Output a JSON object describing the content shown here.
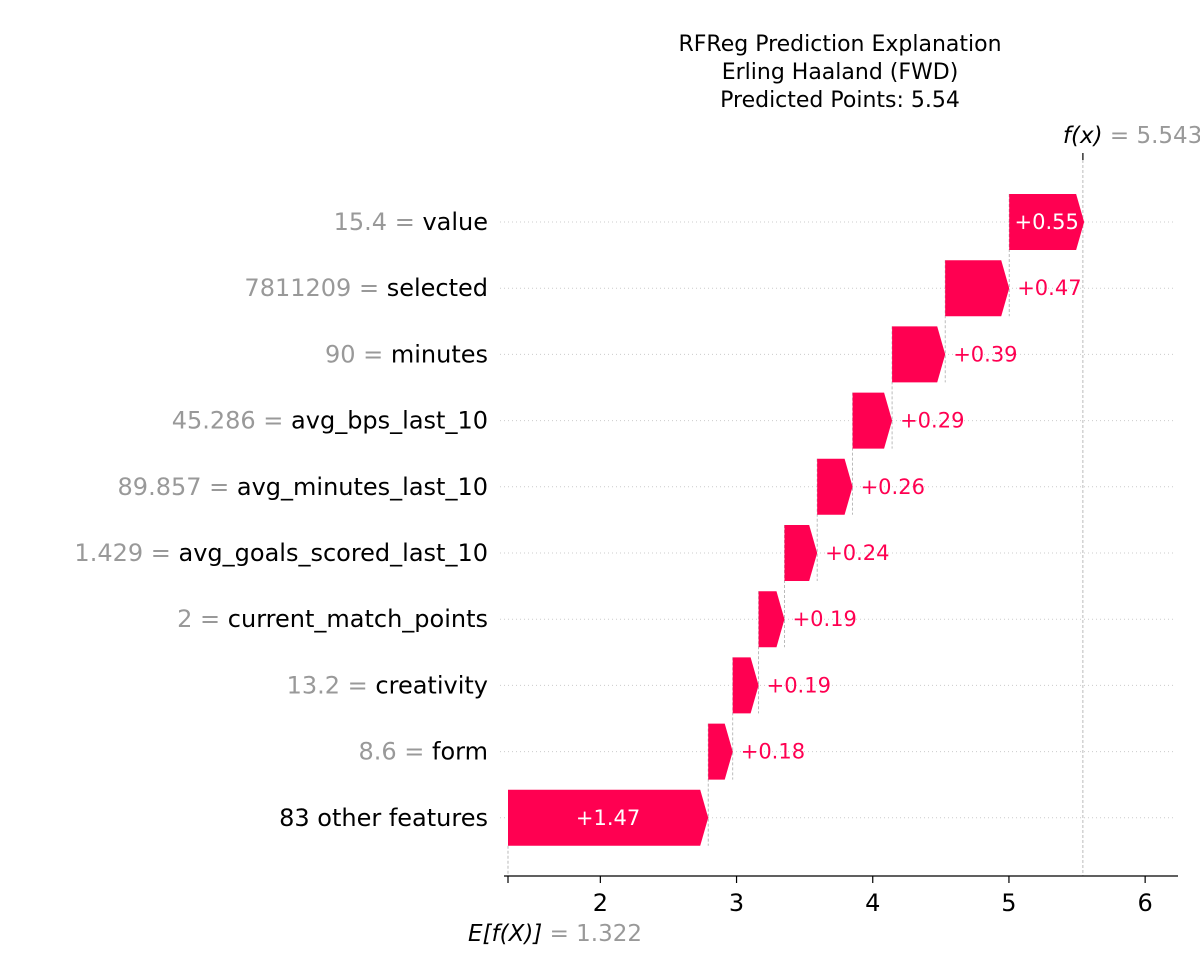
{
  "chart_data": {
    "type": "waterfall",
    "title_lines": [
      "RFReg Prediction Explanation",
      "Erling Haaland (FWD)",
      "Predicted Points: 5.54"
    ],
    "base_value": 1.322,
    "base_label": "E[f(X)]",
    "base_value_label": "= 1.322",
    "output_value": 5.543,
    "output_label": "f(x)",
    "output_value_label": "= 5.543",
    "xlim": [
      1.32,
      6.25
    ],
    "xticks": [
      2,
      3,
      4,
      5,
      6
    ],
    "features": [
      {
        "value": "15.4",
        "name": "value",
        "contribution": 0.55,
        "label": "+0.55"
      },
      {
        "value": "7811209",
        "name": "selected",
        "contribution": 0.47,
        "label": "+0.47"
      },
      {
        "value": "90",
        "name": "minutes",
        "contribution": 0.39,
        "label": "+0.39"
      },
      {
        "value": "45.286",
        "name": "avg_bps_last_10",
        "contribution": 0.29,
        "label": "+0.29"
      },
      {
        "value": "89.857",
        "name": "avg_minutes_last_10",
        "contribution": 0.26,
        "label": "+0.26"
      },
      {
        "value": "1.429",
        "name": "avg_goals_scored_last_10",
        "contribution": 0.24,
        "label": "+0.24"
      },
      {
        "value": "2",
        "name": "current_match_points",
        "contribution": 0.19,
        "label": "+0.19"
      },
      {
        "value": "13.2",
        "name": "creativity",
        "contribution": 0.19,
        "label": "+0.19"
      },
      {
        "value": "8.6",
        "name": "form",
        "contribution": 0.18,
        "label": "+0.18"
      },
      {
        "value": "",
        "name": "83 other features",
        "contribution": 1.47,
        "label": "+1.47"
      }
    ],
    "colors": {
      "positive": "#ff0051",
      "feature_value": "#999999",
      "axis": "#000000",
      "gridline": "#cccccc"
    }
  }
}
